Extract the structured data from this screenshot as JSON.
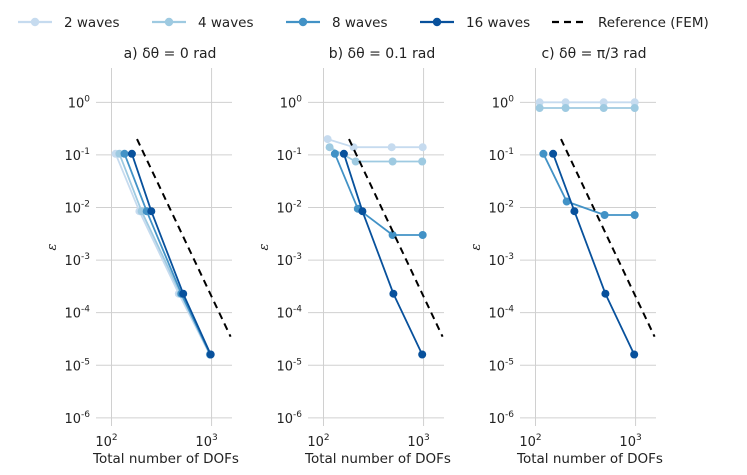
{
  "chart_data": {
    "type": "line",
    "xscale": "log",
    "yscale": "log",
    "xlim": [
      70,
      1600
    ],
    "ylim": [
      7e-07,
      4.5
    ],
    "ylabel": "ε",
    "xlabel": "Total number of DOFs",
    "y_ticks": [
      {
        "base": "10",
        "exp": "0",
        "value": 1
      },
      {
        "base": "10",
        "exp": "-1",
        "value": 0.1
      },
      {
        "base": "10",
        "exp": "-2",
        "value": 0.01
      },
      {
        "base": "10",
        "exp": "-3",
        "value": 0.001
      },
      {
        "base": "10",
        "exp": "-4",
        "value": 0.0001
      },
      {
        "base": "10",
        "exp": "-5",
        "value": 1e-05
      },
      {
        "base": "10",
        "exp": "-6",
        "value": 1e-06
      }
    ],
    "x_ticks": [
      {
        "base": "10",
        "exp": "2",
        "value": 100
      },
      {
        "base": "10",
        "exp": "3",
        "value": 1000
      }
    ],
    "legend": {
      "placement": "top",
      "entries": [
        {
          "label": "2 waves",
          "color": "#c6dbef",
          "style": "line-marker"
        },
        {
          "label": "4 waves",
          "color": "#9ecae1",
          "style": "line-marker"
        },
        {
          "label": "8 waves",
          "color": "#4292c6",
          "style": "line-marker"
        },
        {
          "label": "16 waves",
          "color": "#08519c",
          "style": "line-marker"
        },
        {
          "label": "Reference (FEM)",
          "color": "#000000",
          "style": "dashed"
        }
      ]
    },
    "panels": [
      {
        "title": "a) δθ = 0 rad",
        "series": [
          {
            "name": "2 waves",
            "color": "#c6dbef",
            "x": [
              110,
              190,
              470,
              960
            ],
            "y": [
              0.105,
              0.0085,
              0.00023,
              1.6e-05
            ]
          },
          {
            "name": "4 waves",
            "color": "#9ecae1",
            "x": [
              120,
              200,
              490,
              970
            ],
            "y": [
              0.105,
              0.0085,
              0.00023,
              1.6e-05
            ]
          },
          {
            "name": "8 waves",
            "color": "#4292c6",
            "x": [
              135,
              225,
              500,
              970
            ],
            "y": [
              0.105,
              0.0085,
              0.00023,
              1.6e-05
            ]
          },
          {
            "name": "16 waves",
            "color": "#08519c",
            "x": [
              160,
              250,
              520,
              980
            ],
            "y": [
              0.105,
              0.0085,
              0.00023,
              1.6e-05
            ]
          },
          {
            "name": "Reference (FEM)",
            "color": "#000000",
            "dashed": true,
            "x": [
              180,
              1550
            ],
            "y": [
              0.2,
              3.5e-05
            ]
          }
        ]
      },
      {
        "title": "b) δθ = 0.1 rad",
        "series": [
          {
            "name": "2 waves",
            "color": "#c6dbef",
            "x": [
              110,
              200,
              480,
              980
            ],
            "y": [
              0.2,
              0.14,
              0.14,
              0.14
            ]
          },
          {
            "name": "4 waves",
            "color": "#9ecae1",
            "x": [
              115,
              210,
              490,
              970
            ],
            "y": [
              0.14,
              0.075,
              0.075,
              0.075
            ]
          },
          {
            "name": "8 waves",
            "color": "#4292c6",
            "x": [
              130,
              220,
              490,
              980
            ],
            "y": [
              0.105,
              0.0095,
              0.003,
              0.003
            ]
          },
          {
            "name": "16 waves",
            "color": "#08519c",
            "x": [
              160,
              245,
              500,
              970
            ],
            "y": [
              0.105,
              0.0085,
              0.00023,
              1.6e-05
            ]
          },
          {
            "name": "Reference (FEM)",
            "color": "#000000",
            "dashed": true,
            "x": [
              180,
              1550
            ],
            "y": [
              0.2,
              3.5e-05
            ]
          }
        ]
      },
      {
        "title": "c) δθ = π/3 rad",
        "series": [
          {
            "name": "2 waves",
            "color": "#c6dbef",
            "x": [
              110,
              200,
              480,
              980
            ],
            "y": [
              1.0,
              1.0,
              1.0,
              1.0
            ]
          },
          {
            "name": "4 waves",
            "color": "#9ecae1",
            "x": [
              110,
              200,
              480,
              980
            ],
            "y": [
              0.78,
              0.78,
              0.78,
              0.78
            ]
          },
          {
            "name": "8 waves",
            "color": "#4292c6",
            "x": [
              120,
              205,
              490,
              980
            ],
            "y": [
              0.105,
              0.013,
              0.0072,
              0.0072
            ]
          },
          {
            "name": "16 waves",
            "color": "#08519c",
            "x": [
              150,
              245,
              500,
              970
            ],
            "y": [
              0.105,
              0.0085,
              0.00023,
              1.6e-05
            ]
          },
          {
            "name": "Reference (FEM)",
            "color": "#000000",
            "dashed": true,
            "x": [
              180,
              1550
            ],
            "y": [
              0.2,
              3.5e-05
            ]
          }
        ]
      }
    ]
  }
}
